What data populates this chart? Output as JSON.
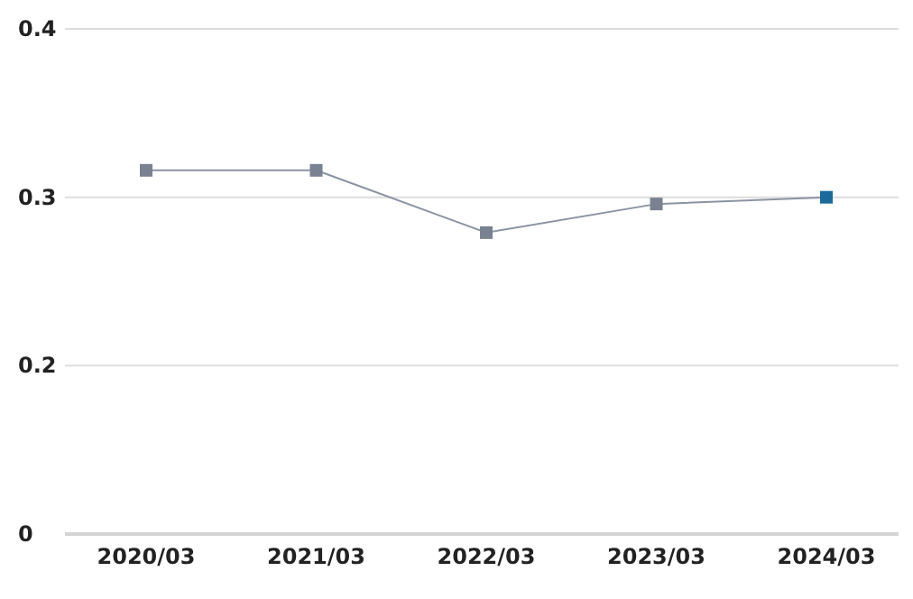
{
  "chart_data": {
    "type": "line",
    "categories": [
      "2020/03",
      "2021/03",
      "2022/03",
      "2023/03",
      "2024/03"
    ],
    "series": [
      {
        "color": "#8a93a3",
        "colors": [
          "#7a8190",
          "#7a8190",
          "#7a8190",
          "#7a8190",
          "#1b6a9c"
        ],
        "values": [
          0.316,
          0.316,
          0.279,
          0.296,
          0.3
        ]
      }
    ],
    "ylim": [
      0.1,
      0.4
    ],
    "yticks": [
      {
        "value": 0.1,
        "label": "0"
      },
      0.2,
      0.3,
      0.4
    ],
    "grid": "y",
    "marker": "square",
    "legend": false
  }
}
